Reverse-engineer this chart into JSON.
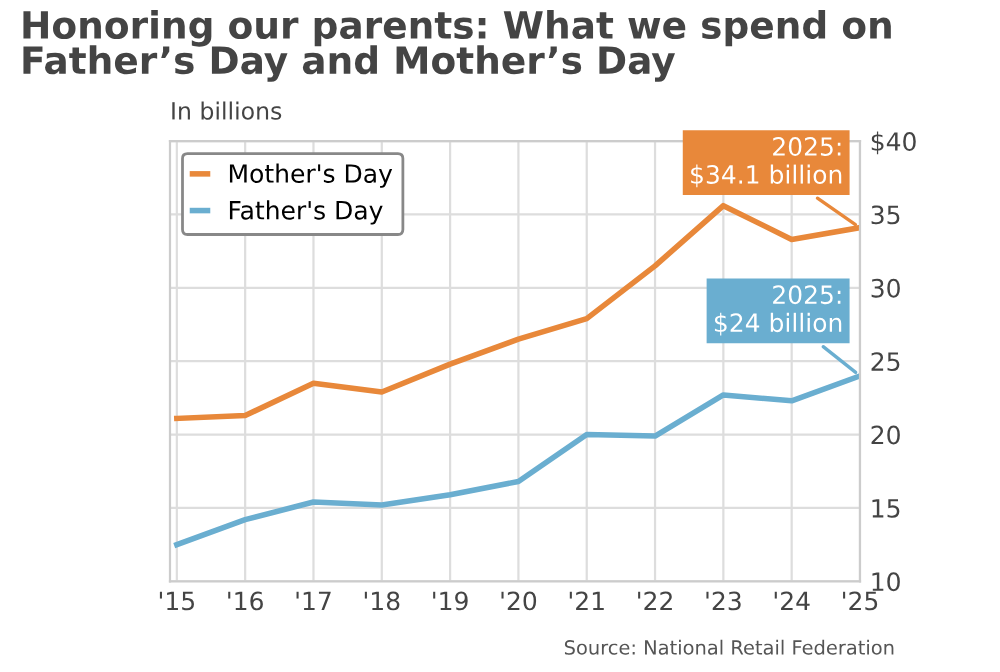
{
  "chart_data": {
    "type": "line",
    "title": "Honoring our parents: What we spend on\nFather’s Day and Mother’s Day",
    "subtitle": "In billions",
    "categories": [
      "'15",
      "'16",
      "'17",
      "'18",
      "'19",
      "'20",
      "'21",
      "'22",
      "'23",
      "'24",
      "'25"
    ],
    "series": [
      {
        "name": "Mother's Day",
        "color": "#e8883a",
        "values": [
          21.1,
          21.3,
          23.5,
          22.9,
          24.8,
          26.5,
          27.9,
          31.5,
          35.6,
          33.3,
          34.1
        ]
      },
      {
        "name": "Father's Day",
        "color": "#6aaed0",
        "values": [
          12.5,
          14.2,
          15.4,
          15.2,
          15.9,
          16.8,
          20.0,
          19.9,
          22.7,
          22.3,
          24
        ]
      }
    ],
    "ylim": [
      10,
      40
    ],
    "yticks": [
      10,
      15,
      20,
      25,
      30,
      35,
      {
        "value": 40,
        "label": "$40"
      }
    ],
    "grid": true,
    "legend": "top left",
    "annotations": [
      {
        "text": "2025:\n$34.1 billion",
        "x": "'25",
        "y": 34.1
      },
      {
        "text": "2025:\n$24 billion",
        "x": "'25",
        "y": 24
      },
      "Source: National Retail Federation"
    ]
  }
}
